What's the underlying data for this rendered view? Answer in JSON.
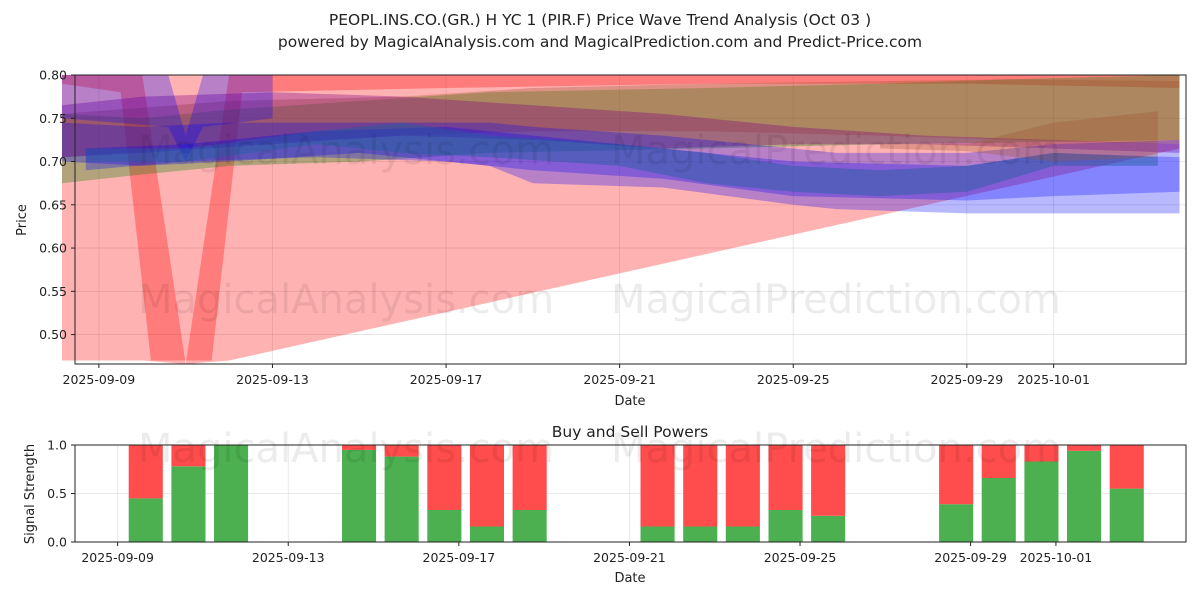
{
  "title": "PEOPL.INS.CO.(GR.) H YC 1 (PIR.F) Price Wave Trend Analysis (Oct 03 )",
  "subtitle": "powered by MagicalAnalysis.com and MagicalPrediction.com and Predict-Price.com",
  "watermarks": [
    "MagicalAnalysis.com",
    "MagicalPrediction.com"
  ],
  "colors": {
    "red": "#ff0000",
    "green": "#008000",
    "blue": "#0000ff",
    "purple": "#800080",
    "brown": "#a0522d",
    "darkblue": "#1f5fa0",
    "bar_buy": "#4caf50",
    "bar_sell": "#ff4c4c"
  },
  "chart_data": [
    {
      "type": "area",
      "title": "",
      "xlabel": "Date",
      "ylabel": "Price",
      "ylim": [
        0.466,
        0.8
      ],
      "xlim_days": [
        -0.55,
        25.05
      ],
      "yticks": [
        0.5,
        0.55,
        0.6,
        0.65,
        0.7,
        0.75,
        0.8
      ],
      "ytick_labels": [
        "0.50",
        "0.55",
        "0.60",
        "0.65",
        "0.70",
        "0.75",
        "0.80"
      ],
      "xticks_days": [
        0,
        4,
        8,
        12,
        16,
        20,
        22
      ],
      "xtick_labels": [
        "2025-09-09",
        "2025-09-13",
        "2025-09-17",
        "2025-09-21",
        "2025-09-25",
        "2025-09-29",
        "2025-10-01"
      ],
      "grid": true,
      "bands": [
        {
          "name": "red-wide",
          "color": "red",
          "opacity": 0.3,
          "x": [
            -0.85,
            0.5,
            1.2,
            1.9,
            2.6,
            3.3,
            8,
            14,
            20,
            24.9
          ],
          "upper": [
            0.8,
            0.8,
            0.8,
            0.8,
            0.8,
            0.8,
            0.8,
            0.8,
            0.8,
            0.8
          ],
          "lower": [
            0.79,
            0.78,
            0.47,
            0.47,
            0.47,
            0.78,
            0.785,
            0.79,
            0.79,
            0.785
          ]
        },
        {
          "name": "red-lower",
          "color": "red",
          "opacity": 0.3,
          "x": [
            -0.85,
            1.0,
            2.0,
            3.0,
            24.9
          ],
          "upper": [
            0.8,
            0.8,
            0.46,
            0.8,
            0.8
          ],
          "lower": [
            0.47,
            0.47,
            0.46,
            0.47,
            0.715
          ]
        },
        {
          "name": "green",
          "color": "green",
          "opacity": 0.3,
          "x": [
            -0.85,
            1.0,
            3.0,
            6.0,
            9.0,
            14,
            18,
            21,
            24.9
          ],
          "upper": [
            0.755,
            0.75,
            0.76,
            0.77,
            0.78,
            0.785,
            0.79,
            0.795,
            0.8
          ],
          "lower": [
            0.675,
            0.685,
            0.695,
            0.7,
            0.71,
            0.715,
            0.72,
            0.722,
            0.725
          ]
        },
        {
          "name": "brown",
          "color": "brown",
          "opacity": 0.35,
          "x": [
            -0.85,
            3.0,
            7.0,
            10,
            14,
            18,
            21,
            24.9
          ],
          "upper": [
            0.755,
            0.77,
            0.775,
            0.785,
            0.79,
            0.793,
            0.795,
            0.793
          ],
          "lower": [
            0.705,
            0.72,
            0.73,
            0.735,
            0.735,
            0.73,
            0.725,
            0.72
          ]
        },
        {
          "name": "purple",
          "color": "purple",
          "opacity": 0.35,
          "x": [
            -0.85,
            1.0,
            4.0,
            7.0,
            10,
            13,
            16,
            19,
            22,
            24.9
          ],
          "upper": [
            0.765,
            0.775,
            0.78,
            0.775,
            0.765,
            0.755,
            0.74,
            0.73,
            0.725,
            0.72
          ],
          "lower": [
            0.705,
            0.71,
            0.72,
            0.73,
            0.725,
            0.715,
            0.72,
            0.72,
            0.715,
            0.71
          ]
        },
        {
          "name": "blue-wide",
          "color": "blue",
          "opacity": 0.28,
          "x": [
            -0.85,
            1.0,
            3.0,
            6.0,
            9.0,
            10,
            13,
            16,
            17,
            20,
            22,
            24.9
          ],
          "upper": [
            0.745,
            0.74,
            0.745,
            0.745,
            0.745,
            0.74,
            0.73,
            0.715,
            0.71,
            0.71,
            0.72,
            0.725
          ],
          "lower": [
            0.7,
            0.695,
            0.7,
            0.71,
            0.695,
            0.675,
            0.67,
            0.65,
            0.645,
            0.64,
            0.64,
            0.64
          ]
        },
        {
          "name": "blue-spike",
          "color": "blue",
          "opacity": 0.28,
          "x": [
            -0.85,
            1.6,
            2.0,
            2.4,
            4.0
          ],
          "upper": [
            0.8,
            0.8,
            0.73,
            0.8,
            0.8
          ],
          "lower": [
            0.75,
            0.74,
            0.7,
            0.74,
            0.75
          ]
        },
        {
          "name": "blue-mid",
          "color": "blue",
          "opacity": 0.28,
          "x": [
            -0.3,
            2.0,
            5.0,
            8.0,
            10,
            13,
            16,
            20,
            22,
            24.9
          ],
          "upper": [
            0.715,
            0.72,
            0.735,
            0.74,
            0.73,
            0.715,
            0.7,
            0.695,
            0.71,
            0.705
          ],
          "lower": [
            0.69,
            0.7,
            0.705,
            0.7,
            0.69,
            0.68,
            0.66,
            0.655,
            0.66,
            0.665
          ]
        },
        {
          "name": "darkblue",
          "color": "darkblue",
          "opacity": 0.45,
          "x": [
            -0.3,
            2.0,
            5.0,
            7.0,
            9.0,
            12,
            14,
            16,
            18,
            20,
            22,
            24.4
          ],
          "upper": [
            0.715,
            0.715,
            0.735,
            0.745,
            0.73,
            0.72,
            0.71,
            0.695,
            0.69,
            0.695,
            0.71,
            0.705
          ],
          "lower": [
            0.7,
            0.7,
            0.72,
            0.71,
            0.705,
            0.695,
            0.675,
            0.665,
            0.66,
            0.665,
            0.695,
            0.695
          ]
        },
        {
          "name": "brown-top",
          "color": "brown",
          "opacity": 0.3,
          "x": [
            18,
            20,
            22,
            24.4
          ],
          "upper": [
            0.72,
            0.72,
            0.745,
            0.758
          ],
          "lower": [
            0.715,
            0.712,
            0.7,
            0.705
          ]
        }
      ]
    },
    {
      "type": "bar",
      "title": "Buy and Sell Powers",
      "xlabel": "Date",
      "ylabel": "Signal Strength",
      "ylim": [
        0,
        1.0
      ],
      "xlim_days": [
        -1.0,
        25.05
      ],
      "yticks": [
        0.0,
        0.5,
        1.0
      ],
      "ytick_labels": [
        "0.0",
        "0.5",
        "1.0"
      ],
      "xticks_days": [
        0,
        4,
        8,
        12,
        16,
        20,
        22
      ],
      "xtick_labels": [
        "2025-09-09",
        "2025-09-13",
        "2025-09-17",
        "2025-09-21",
        "2025-09-25",
        "2025-09-29",
        "2025-10-01"
      ],
      "grid": true,
      "day_offsets": [
        0.66,
        1.66,
        2.66,
        5.66,
        6.66,
        7.66,
        8.66,
        9.66,
        12.66,
        13.66,
        14.66,
        15.66,
        16.66,
        19.66,
        20.66,
        21.66,
        22.66,
        23.66
      ],
      "series": [
        {
          "name": "Buy",
          "color": "bar_buy",
          "values": [
            0.45,
            0.78,
            1.0,
            0.95,
            0.88,
            0.33,
            0.16,
            0.33,
            0.16,
            0.16,
            0.16,
            0.33,
            0.27,
            0.39,
            0.66,
            0.83,
            0.94,
            0.55
          ]
        },
        {
          "name": "Sell",
          "color": "bar_sell",
          "values": [
            0.55,
            0.22,
            0.0,
            0.05,
            0.12,
            0.67,
            0.84,
            0.67,
            0.84,
            0.84,
            0.84,
            0.67,
            0.73,
            0.61,
            0.34,
            0.17,
            0.06,
            0.45
          ]
        }
      ]
    }
  ]
}
